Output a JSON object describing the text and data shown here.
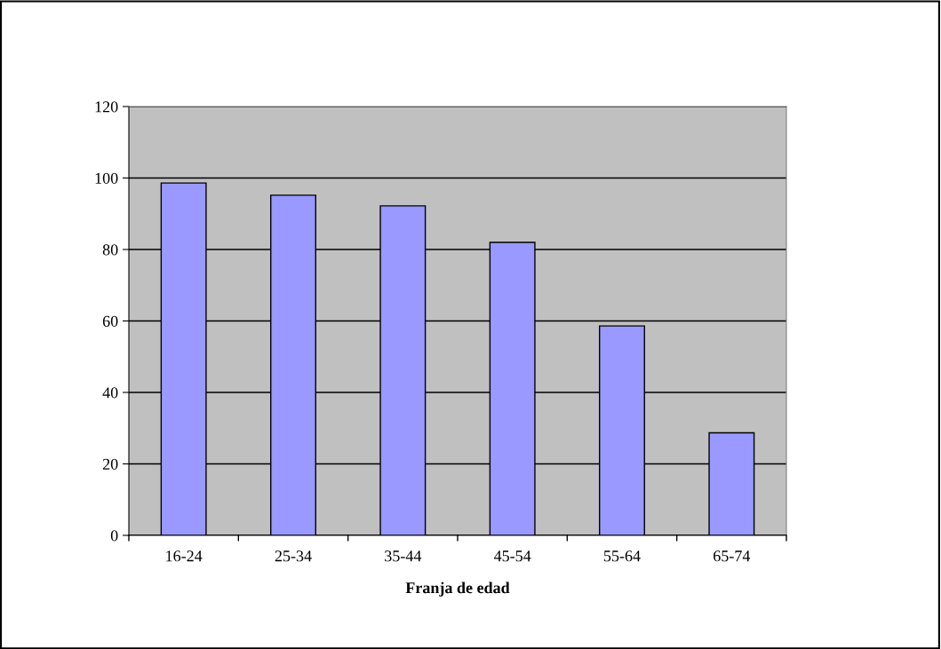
{
  "chart_data": {
    "type": "bar",
    "xlabel": "Franja de edad",
    "categories": [
      "16-24",
      "25-34",
      "35-44",
      "45-54",
      "55-64",
      "65-74"
    ],
    "values": [
      98.6,
      95.2,
      92.2,
      82.0,
      58.6,
      28.7
    ],
    "color": "#9999ff",
    "ylim": [
      0,
      120
    ],
    "yticks": [
      0,
      20,
      40,
      60,
      80,
      100,
      120
    ],
    "grid": "y"
  }
}
